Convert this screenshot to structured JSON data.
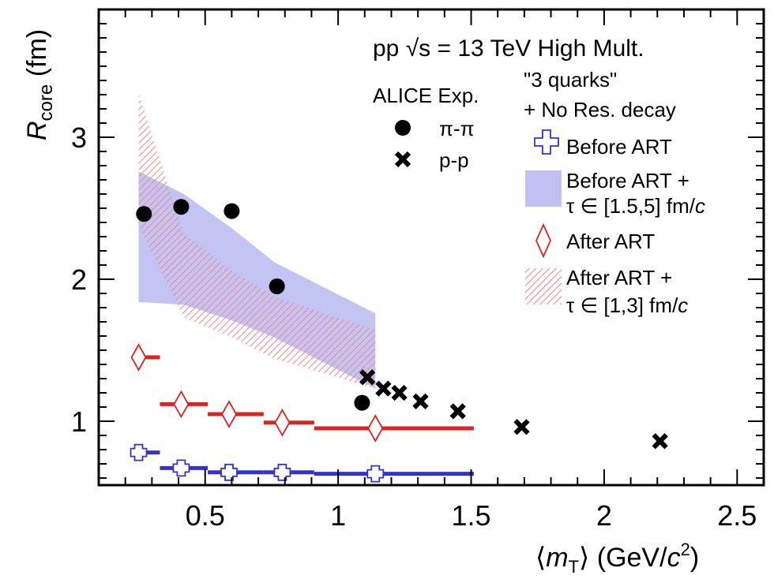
{
  "chart_data": {
    "type": "scatter",
    "xlabel_parts": {
      "open": "⟨",
      "m": "m",
      "T": "T",
      "close": "⟩",
      "unit": " (GeV/",
      "c": "c",
      "sq": "2",
      "end": ")"
    },
    "ylabel_parts": {
      "R": "R",
      "sub": "core",
      "unit": " (fm)"
    },
    "xlim": [
      0.1,
      2.6
    ],
    "ylim": [
      0.55,
      3.9
    ],
    "x_ticks": [
      0.5,
      1,
      1.5,
      2,
      2.5
    ],
    "x_tick_labels": [
      "0.5",
      "1",
      "1.5",
      "2",
      "2.5"
    ],
    "y_ticks": [
      1,
      2,
      3
    ],
    "y_tick_labels": [
      "1",
      "2",
      "3"
    ],
    "header": "pp  √s = 13 TeV High Mult.",
    "legend_exp_title": "ALICE Exp.",
    "legend_model_title_1": "\"3 quarks\"",
    "legend_model_title_2": "+ No Res. decay",
    "legend_placement": "top-right",
    "series": [
      {
        "name": "π-π",
        "marker": "filled-circle",
        "color": "#000000",
        "points": [
          [
            0.27,
            2.46
          ],
          [
            0.41,
            2.51
          ],
          [
            0.6,
            2.48
          ],
          [
            0.77,
            1.95
          ],
          [
            1.09,
            1.13
          ]
        ]
      },
      {
        "name": "p-p",
        "marker": "x-cross",
        "color": "#000000",
        "points": [
          [
            1.11,
            1.31
          ],
          [
            1.17,
            1.23
          ],
          [
            1.23,
            1.2
          ],
          [
            1.31,
            1.14
          ],
          [
            1.45,
            1.07
          ],
          [
            1.69,
            0.96
          ],
          [
            2.21,
            0.86
          ]
        ]
      },
      {
        "name": "Before ART",
        "marker": "open-cross",
        "color": "#3333cc",
        "points": [
          [
            0.25,
            0.78
          ],
          [
            0.41,
            0.67
          ],
          [
            0.59,
            0.64
          ],
          [
            0.79,
            0.64
          ],
          [
            1.14,
            0.63
          ]
        ],
        "xerr": [
          [
            0.24,
            0.33
          ],
          [
            0.33,
            0.51
          ],
          [
            0.51,
            0.72
          ],
          [
            0.72,
            0.91
          ],
          [
            0.91,
            1.51
          ]
        ]
      },
      {
        "name": "Before ART + τ ∈ [1.5,5] fm/c",
        "fill": "band",
        "color": "#9999ee",
        "upper": [
          [
            0.25,
            2.76
          ],
          [
            0.42,
            2.6
          ],
          [
            0.6,
            2.36
          ],
          [
            0.76,
            2.12
          ],
          [
            1.14,
            1.76
          ]
        ],
        "lower": [
          [
            0.25,
            1.84
          ],
          [
            0.42,
            1.82
          ],
          [
            0.6,
            1.71
          ],
          [
            0.76,
            1.59
          ],
          [
            1.14,
            1.23
          ]
        ]
      },
      {
        "name": "After ART",
        "marker": "open-diamond",
        "color": "#dd2222",
        "points": [
          [
            0.25,
            1.45
          ],
          [
            0.41,
            1.12
          ],
          [
            0.59,
            1.05
          ],
          [
            0.79,
            0.99
          ],
          [
            1.14,
            0.95
          ]
        ],
        "xerr": [
          [
            0.24,
            0.33
          ],
          [
            0.33,
            0.51
          ],
          [
            0.51,
            0.72
          ],
          [
            0.72,
            0.91
          ],
          [
            0.91,
            1.51
          ]
        ]
      },
      {
        "name": "After ART + τ ∈ [1,3] fm/c",
        "fill": "hatched-band",
        "color": "#ee8888",
        "upper": [
          [
            0.25,
            3.31
          ],
          [
            0.42,
            2.32
          ],
          [
            0.6,
            2.06
          ],
          [
            0.76,
            1.88
          ],
          [
            1.14,
            1.64
          ]
        ],
        "lower": [
          [
            0.25,
            2.38
          ],
          [
            0.42,
            1.73
          ],
          [
            0.6,
            1.59
          ],
          [
            0.76,
            1.44
          ],
          [
            1.14,
            1.23
          ]
        ]
      }
    ],
    "legend_labels": {
      "pipi": "π-π",
      "pp": "p-p",
      "before": "Before ART",
      "before_band_1": "Before ART +",
      "before_band_2a": "τ ∈ [1.5,5] fm/",
      "before_band_2b": "c",
      "after": "After ART",
      "after_band_1": "After ART +",
      "after_band_2a": "τ ∈ [1,3] fm/",
      "after_band_2b": "c"
    }
  }
}
